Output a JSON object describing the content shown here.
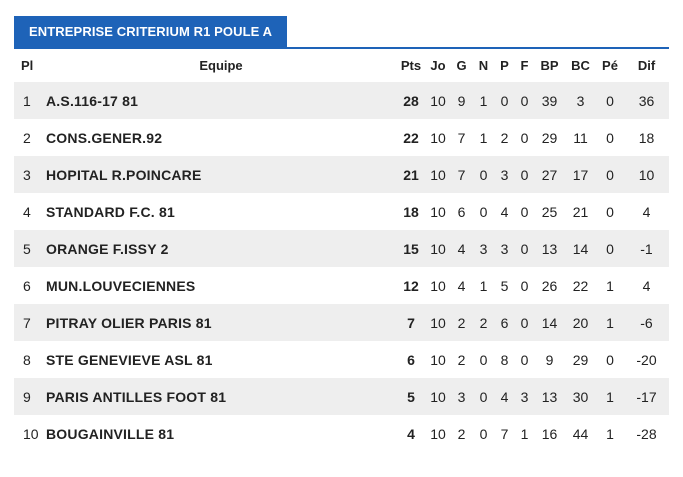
{
  "title": "ENTREPRISE CRITERIUM R1 POULE A",
  "columns": {
    "pl": "Pl",
    "team": "Equipe",
    "pts": "Pts",
    "jo": "Jo",
    "g": "G",
    "n": "N",
    "p": "P",
    "f": "F",
    "bp": "BP",
    "bc": "BC",
    "pe": "Pé",
    "dif": "Dif"
  },
  "rows": [
    {
      "pl": "1",
      "team": "A.S.116-17 81",
      "pts": "28",
      "jo": "10",
      "g": "9",
      "n": "1",
      "p": "0",
      "f": "0",
      "bp": "39",
      "bc": "3",
      "pe": "0",
      "dif": "36"
    },
    {
      "pl": "2",
      "team": "CONS.GENER.92",
      "pts": "22",
      "jo": "10",
      "g": "7",
      "n": "1",
      "p": "2",
      "f": "0",
      "bp": "29",
      "bc": "11",
      "pe": "0",
      "dif": "18"
    },
    {
      "pl": "3",
      "team": "HOPITAL R.POINCARE",
      "pts": "21",
      "jo": "10",
      "g": "7",
      "n": "0",
      "p": "3",
      "f": "0",
      "bp": "27",
      "bc": "17",
      "pe": "0",
      "dif": "10"
    },
    {
      "pl": "4",
      "team": "STANDARD F.C. 81",
      "pts": "18",
      "jo": "10",
      "g": "6",
      "n": "0",
      "p": "4",
      "f": "0",
      "bp": "25",
      "bc": "21",
      "pe": "0",
      "dif": "4"
    },
    {
      "pl": "5",
      "team": "ORANGE F.ISSY 2",
      "pts": "15",
      "jo": "10",
      "g": "4",
      "n": "3",
      "p": "3",
      "f": "0",
      "bp": "13",
      "bc": "14",
      "pe": "0",
      "dif": "-1"
    },
    {
      "pl": "6",
      "team": "MUN.LOUVECIENNES",
      "pts": "12",
      "jo": "10",
      "g": "4",
      "n": "1",
      "p": "5",
      "f": "0",
      "bp": "26",
      "bc": "22",
      "pe": "1",
      "dif": "4"
    },
    {
      "pl": "7",
      "team": "PITRAY OLIER PARIS 81",
      "pts": "7",
      "jo": "10",
      "g": "2",
      "n": "2",
      "p": "6",
      "f": "0",
      "bp": "14",
      "bc": "20",
      "pe": "1",
      "dif": "-6"
    },
    {
      "pl": "8",
      "team": "STE GENEVIEVE ASL 81",
      "pts": "6",
      "jo": "10",
      "g": "2",
      "n": "0",
      "p": "8",
      "f": "0",
      "bp": "9",
      "bc": "29",
      "pe": "0",
      "dif": "-20"
    },
    {
      "pl": "9",
      "team": "PARIS ANTILLES FOOT 81",
      "pts": "5",
      "jo": "10",
      "g": "3",
      "n": "0",
      "p": "4",
      "f": "3",
      "bp": "13",
      "bc": "30",
      "pe": "1",
      "dif": "-17"
    },
    {
      "pl": "10",
      "team": "BOUGAINVILLE 81",
      "pts": "4",
      "jo": "10",
      "g": "2",
      "n": "0",
      "p": "7",
      "f": "1",
      "bp": "16",
      "bc": "44",
      "pe": "1",
      "dif": "-28"
    }
  ]
}
